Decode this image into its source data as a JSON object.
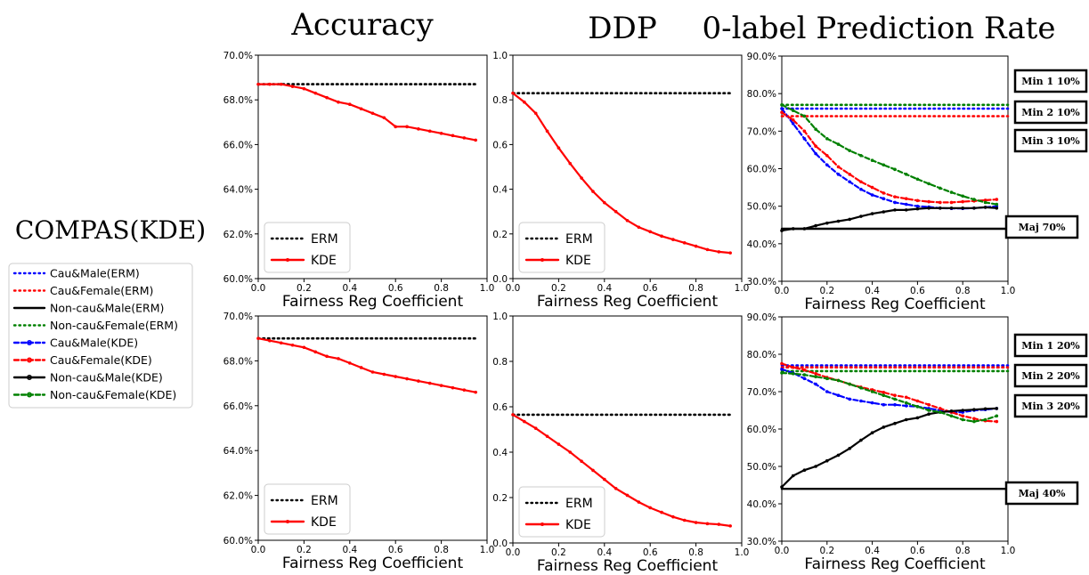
{
  "headers": {
    "accuracy": "Accuracy",
    "ddp": "DDP",
    "rate": "0-label Prediction Rate"
  },
  "row_label": "COMPAS(KDE)",
  "group_legend": [
    {
      "label": "Cau&Male(ERM)",
      "color": "#0000ff",
      "style": "dotted"
    },
    {
      "label": "Cau&Female(ERM)",
      "color": "#ff0000",
      "style": "dotted"
    },
    {
      "label": "Non-cau&Male(ERM)",
      "color": "#000000",
      "style": "solid"
    },
    {
      "label": "Non-cau&Female(ERM)",
      "color": "#008000",
      "style": "dotted"
    },
    {
      "label": "Cau&Male(KDE)",
      "color": "#0000ff",
      "style": "dash-marker"
    },
    {
      "label": "Cau&Female(KDE)",
      "color": "#ff0000",
      "style": "dash-marker"
    },
    {
      "label": "Non-cau&Male(KDE)",
      "color": "#000000",
      "style": "solid-marker"
    },
    {
      "label": "Non-cau&Female(KDE)",
      "color": "#008000",
      "style": "dash-marker"
    }
  ],
  "colors": {
    "blue": "#0000ff",
    "red": "#ff0000",
    "black": "#000000",
    "green": "#008000"
  },
  "chart_data": [
    {
      "id": "acc-top",
      "type": "line",
      "xlabel": "Fairness Reg Coefficient",
      "xlim": [
        0,
        1
      ],
      "ylim": [
        0.6,
        0.7
      ],
      "xticks": [
        0,
        0.2,
        0.4,
        0.6,
        0.8,
        1.0
      ],
      "xticklabels": [
        "0.0",
        "0.2",
        "0.4",
        "0.6",
        "0.8",
        "1.0"
      ],
      "yticks": [
        0.6,
        0.62,
        0.64,
        0.66,
        0.68,
        0.7
      ],
      "yticklabels": [
        "60.0%",
        "62.0%",
        "64.0%",
        "66.0%",
        "68.0%",
        "70.0%"
      ],
      "legend": {
        "position": "lower-left",
        "entries": [
          "ERM",
          "KDE"
        ]
      },
      "series": [
        {
          "name": "ERM",
          "color": "#000000",
          "style": "dotted",
          "x": [
            0,
            0.95
          ],
          "y": [
            0.687,
            0.687
          ]
        },
        {
          "name": "KDE",
          "color": "#ff0000",
          "style": "solid-marker",
          "x": [
            0,
            0.05,
            0.1,
            0.15,
            0.2,
            0.25,
            0.3,
            0.35,
            0.4,
            0.45,
            0.5,
            0.55,
            0.6,
            0.65,
            0.7,
            0.75,
            0.8,
            0.85,
            0.9,
            0.95
          ],
          "y": [
            0.687,
            0.687,
            0.687,
            0.686,
            0.685,
            0.683,
            0.681,
            0.679,
            0.678,
            0.676,
            0.674,
            0.672,
            0.668,
            0.668,
            0.667,
            0.666,
            0.665,
            0.664,
            0.663,
            0.662
          ]
        }
      ]
    },
    {
      "id": "ddp-top",
      "type": "line",
      "xlabel": "Fairness Reg Coefficient",
      "xlim": [
        0,
        1
      ],
      "ylim": [
        0,
        1
      ],
      "xticks": [
        0,
        0.2,
        0.4,
        0.6,
        0.8,
        1.0
      ],
      "xticklabels": [
        "0.0",
        "0.2",
        "0.4",
        "0.6",
        "0.8",
        "1.0"
      ],
      "yticks": [
        0,
        0.2,
        0.4,
        0.6,
        0.8,
        1.0
      ],
      "yticklabels": [
        "0.0",
        "0.2",
        "0.4",
        "0.6",
        "0.8",
        "1.0"
      ],
      "legend": {
        "position": "lower-left",
        "entries": [
          "ERM",
          "KDE"
        ]
      },
      "series": [
        {
          "name": "ERM",
          "color": "#000000",
          "style": "dotted",
          "x": [
            0,
            0.95
          ],
          "y": [
            0.83,
            0.83
          ]
        },
        {
          "name": "KDE",
          "color": "#ff0000",
          "style": "solid-marker",
          "x": [
            0,
            0.05,
            0.1,
            0.15,
            0.2,
            0.25,
            0.3,
            0.35,
            0.4,
            0.45,
            0.5,
            0.55,
            0.6,
            0.65,
            0.7,
            0.75,
            0.8,
            0.85,
            0.9,
            0.95
          ],
          "y": [
            0.83,
            0.79,
            0.74,
            0.66,
            0.585,
            0.515,
            0.45,
            0.39,
            0.34,
            0.3,
            0.26,
            0.23,
            0.21,
            0.19,
            0.175,
            0.16,
            0.145,
            0.13,
            0.12,
            0.115
          ]
        }
      ]
    },
    {
      "id": "rate-top",
      "type": "line",
      "xlabel": "Fairness Reg Coefficient",
      "xlim": [
        0,
        1
      ],
      "ylim": [
        0.3,
        0.9
      ],
      "xticks": [
        0,
        0.2,
        0.4,
        0.6,
        0.8,
        1.0
      ],
      "xticklabels": [
        "0.0",
        "0.2",
        "0.4",
        "0.6",
        "0.8",
        "1.0"
      ],
      "yticks": [
        0.3,
        0.4,
        0.5,
        0.6,
        0.7,
        0.8,
        0.9
      ],
      "yticklabels": [
        "30.0%",
        "40.0%",
        "50.0%",
        "60.0%",
        "70.0%",
        "80.0%",
        "90.0%"
      ],
      "annotations": [
        "Min 1 10%",
        "Min 2 10%",
        "Min 3 10%",
        "Maj 70%"
      ],
      "series": [
        {
          "name": "Cau&Male(ERM)",
          "color": "#0000ff",
          "style": "dotted",
          "x": [
            0,
            1
          ],
          "y": [
            0.76,
            0.76
          ]
        },
        {
          "name": "Cau&Female(ERM)",
          "color": "#ff0000",
          "style": "dotted",
          "x": [
            0,
            1
          ],
          "y": [
            0.74,
            0.74
          ]
        },
        {
          "name": "Non-cau&Male(ERM)",
          "color": "#000000",
          "style": "solid",
          "x": [
            0,
            1
          ],
          "y": [
            0.44,
            0.44
          ]
        },
        {
          "name": "Non-cau&Female(ERM)",
          "color": "#008000",
          "style": "dotted",
          "x": [
            0,
            1
          ],
          "y": [
            0.77,
            0.77
          ]
        },
        {
          "name": "Cau&Male(KDE)",
          "color": "#0000ff",
          "style": "dash-marker",
          "x": [
            0,
            0.05,
            0.1,
            0.15,
            0.2,
            0.25,
            0.3,
            0.35,
            0.4,
            0.45,
            0.5,
            0.55,
            0.6,
            0.65,
            0.7,
            0.75,
            0.8,
            0.85,
            0.9,
            0.95
          ],
          "y": [
            0.76,
            0.72,
            0.68,
            0.64,
            0.61,
            0.585,
            0.565,
            0.545,
            0.53,
            0.52,
            0.51,
            0.505,
            0.5,
            0.498,
            0.495,
            0.494,
            0.494,
            0.495,
            0.497,
            0.5
          ]
        },
        {
          "name": "Cau&Female(KDE)",
          "color": "#ff0000",
          "style": "dash-marker",
          "x": [
            0,
            0.05,
            0.1,
            0.15,
            0.2,
            0.25,
            0.3,
            0.35,
            0.4,
            0.45,
            0.5,
            0.55,
            0.6,
            0.65,
            0.7,
            0.75,
            0.8,
            0.85,
            0.9,
            0.95
          ],
          "y": [
            0.75,
            0.73,
            0.7,
            0.66,
            0.635,
            0.605,
            0.585,
            0.565,
            0.55,
            0.535,
            0.525,
            0.52,
            0.515,
            0.512,
            0.51,
            0.51,
            0.512,
            0.514,
            0.516,
            0.518
          ]
        },
        {
          "name": "Non-cau&Male(KDE)",
          "color": "#000000",
          "style": "solid-marker",
          "x": [
            0,
            0.05,
            0.1,
            0.15,
            0.2,
            0.25,
            0.3,
            0.35,
            0.4,
            0.45,
            0.5,
            0.55,
            0.6,
            0.65,
            0.7,
            0.75,
            0.8,
            0.85,
            0.9,
            0.95
          ],
          "y": [
            0.435,
            0.44,
            0.44,
            0.448,
            0.455,
            0.46,
            0.465,
            0.473,
            0.48,
            0.485,
            0.49,
            0.49,
            0.493,
            0.495,
            0.495,
            0.495,
            0.495,
            0.495,
            0.497,
            0.495
          ]
        },
        {
          "name": "Non-cau&Female(KDE)",
          "color": "#008000",
          "style": "dash-marker",
          "x": [
            0,
            0.05,
            0.1,
            0.15,
            0.2,
            0.25,
            0.3,
            0.35,
            0.4,
            0.45,
            0.5,
            0.55,
            0.6,
            0.65,
            0.7,
            0.75,
            0.8,
            0.85,
            0.9,
            0.95
          ],
          "y": [
            0.77,
            0.755,
            0.74,
            0.705,
            0.68,
            0.665,
            0.648,
            0.635,
            0.622,
            0.61,
            0.598,
            0.585,
            0.572,
            0.56,
            0.548,
            0.537,
            0.527,
            0.518,
            0.51,
            0.505
          ]
        }
      ]
    },
    {
      "id": "acc-bottom",
      "type": "line",
      "xlabel": "Fairness Reg Coefficient",
      "xlim": [
        0,
        1
      ],
      "ylim": [
        0.6,
        0.7
      ],
      "xticks": [
        0,
        0.2,
        0.4,
        0.6,
        0.8,
        1.0
      ],
      "xticklabels": [
        "0.0",
        "0.2",
        "0.4",
        "0.6",
        "0.8",
        "1.0"
      ],
      "yticks": [
        0.6,
        0.62,
        0.64,
        0.66,
        0.68,
        0.7
      ],
      "yticklabels": [
        "60.0%",
        "62.0%",
        "64.0%",
        "66.0%",
        "68.0%",
        "70.0%"
      ],
      "legend": {
        "position": "lower-left",
        "entries": [
          "ERM",
          "KDE"
        ]
      },
      "series": [
        {
          "name": "ERM",
          "color": "#000000",
          "style": "dotted",
          "x": [
            0,
            0.95
          ],
          "y": [
            0.69,
            0.69
          ]
        },
        {
          "name": "KDE",
          "color": "#ff0000",
          "style": "solid-marker",
          "x": [
            0,
            0.05,
            0.1,
            0.15,
            0.2,
            0.25,
            0.3,
            0.35,
            0.4,
            0.45,
            0.5,
            0.55,
            0.6,
            0.65,
            0.7,
            0.75,
            0.8,
            0.85,
            0.9,
            0.95
          ],
          "y": [
            0.69,
            0.689,
            0.688,
            0.687,
            0.686,
            0.684,
            0.682,
            0.681,
            0.679,
            0.677,
            0.675,
            0.674,
            0.673,
            0.672,
            0.671,
            0.67,
            0.669,
            0.668,
            0.667,
            0.666
          ]
        }
      ]
    },
    {
      "id": "ddp-bottom",
      "type": "line",
      "xlabel": "Fairness Reg Coefficient",
      "xlim": [
        0,
        1
      ],
      "ylim": [
        0,
        1
      ],
      "xticks": [
        0,
        0.2,
        0.4,
        0.6,
        0.8,
        1.0
      ],
      "xticklabels": [
        "0.0",
        "0.2",
        "0.4",
        "0.6",
        "0.8",
        "1.0"
      ],
      "yticks": [
        0,
        0.2,
        0.4,
        0.6,
        0.8,
        1.0
      ],
      "yticklabels": [
        "0.0",
        "0.2",
        "0.4",
        "0.6",
        "0.8",
        "1.0"
      ],
      "legend": {
        "position": "lower-left",
        "entries": [
          "ERM",
          "KDE"
        ]
      },
      "series": [
        {
          "name": "ERM",
          "color": "#000000",
          "style": "dotted",
          "x": [
            0,
            0.95
          ],
          "y": [
            0.565,
            0.565
          ]
        },
        {
          "name": "KDE",
          "color": "#ff0000",
          "style": "solid-marker",
          "x": [
            0,
            0.05,
            0.1,
            0.15,
            0.2,
            0.25,
            0.3,
            0.35,
            0.4,
            0.45,
            0.5,
            0.55,
            0.6,
            0.65,
            0.7,
            0.75,
            0.8,
            0.85,
            0.9,
            0.95
          ],
          "y": [
            0.565,
            0.535,
            0.505,
            0.47,
            0.435,
            0.4,
            0.36,
            0.32,
            0.28,
            0.24,
            0.21,
            0.18,
            0.155,
            0.135,
            0.115,
            0.1,
            0.09,
            0.085,
            0.082,
            0.075
          ]
        }
      ]
    },
    {
      "id": "rate-bottom",
      "type": "line",
      "xlabel": "Fairness Reg Coefficient",
      "xlim": [
        0,
        1
      ],
      "ylim": [
        0.3,
        0.9
      ],
      "xticks": [
        0,
        0.2,
        0.4,
        0.6,
        0.8,
        1.0
      ],
      "xticklabels": [
        "0.0",
        "0.2",
        "0.4",
        "0.6",
        "0.8",
        "1.0"
      ],
      "yticks": [
        0.3,
        0.4,
        0.5,
        0.6,
        0.7,
        0.8,
        0.9
      ],
      "yticklabels": [
        "30.0%",
        "40.0%",
        "50.0%",
        "60.0%",
        "70.0%",
        "80.0%",
        "90.0%"
      ],
      "annotations": [
        "Min 1 20%",
        "Min 2 20%",
        "Min 3 20%",
        "Maj 40%"
      ],
      "series": [
        {
          "name": "Cau&Male(ERM)",
          "color": "#0000ff",
          "style": "dotted",
          "x": [
            0,
            1
          ],
          "y": [
            0.77,
            0.77
          ]
        },
        {
          "name": "Cau&Female(ERM)",
          "color": "#ff0000",
          "style": "dotted",
          "x": [
            0,
            1
          ],
          "y": [
            0.765,
            0.765
          ]
        },
        {
          "name": "Non-cau&Male(ERM)",
          "color": "#000000",
          "style": "solid",
          "x": [
            0,
            1
          ],
          "y": [
            0.44,
            0.44
          ]
        },
        {
          "name": "Non-cau&Female(ERM)",
          "color": "#008000",
          "style": "dotted",
          "x": [
            0,
            1
          ],
          "y": [
            0.755,
            0.755
          ]
        },
        {
          "name": "Cau&Male(KDE)",
          "color": "#0000ff",
          "style": "dash-marker",
          "x": [
            0,
            0.05,
            0.1,
            0.15,
            0.2,
            0.25,
            0.3,
            0.35,
            0.4,
            0.45,
            0.5,
            0.55,
            0.6,
            0.65,
            0.7,
            0.75,
            0.8,
            0.85,
            0.9,
            0.95
          ],
          "y": [
            0.76,
            0.75,
            0.735,
            0.72,
            0.7,
            0.69,
            0.68,
            0.675,
            0.67,
            0.665,
            0.665,
            0.662,
            0.66,
            0.655,
            0.65,
            0.645,
            0.645,
            0.65,
            0.652,
            0.655
          ]
        },
        {
          "name": "Cau&Female(KDE)",
          "color": "#ff0000",
          "style": "dash-marker",
          "x": [
            0,
            0.05,
            0.1,
            0.15,
            0.2,
            0.25,
            0.3,
            0.35,
            0.4,
            0.45,
            0.5,
            0.55,
            0.6,
            0.65,
            0.7,
            0.75,
            0.8,
            0.85,
            0.9,
            0.95
          ],
          "y": [
            0.775,
            0.765,
            0.758,
            0.748,
            0.738,
            0.73,
            0.72,
            0.712,
            0.705,
            0.698,
            0.69,
            0.685,
            0.675,
            0.665,
            0.655,
            0.645,
            0.635,
            0.628,
            0.622,
            0.62
          ]
        },
        {
          "name": "Non-cau&Male(KDE)",
          "color": "#000000",
          "style": "solid-marker",
          "x": [
            0,
            0.05,
            0.1,
            0.15,
            0.2,
            0.25,
            0.3,
            0.35,
            0.4,
            0.45,
            0.5,
            0.55,
            0.6,
            0.65,
            0.7,
            0.75,
            0.8,
            0.85,
            0.9,
            0.95
          ],
          "y": [
            0.445,
            0.475,
            0.49,
            0.5,
            0.515,
            0.53,
            0.548,
            0.57,
            0.59,
            0.605,
            0.615,
            0.625,
            0.63,
            0.64,
            0.645,
            0.648,
            0.65,
            0.652,
            0.654,
            0.655
          ]
        },
        {
          "name": "Non-cau&Female(KDE)",
          "color": "#008000",
          "style": "dash-marker",
          "x": [
            0,
            0.05,
            0.1,
            0.15,
            0.2,
            0.25,
            0.3,
            0.35,
            0.4,
            0.45,
            0.5,
            0.55,
            0.6,
            0.65,
            0.7,
            0.75,
            0.8,
            0.85,
            0.9,
            0.95
          ],
          "y": [
            0.75,
            0.748,
            0.745,
            0.74,
            0.735,
            0.73,
            0.72,
            0.71,
            0.7,
            0.69,
            0.68,
            0.67,
            0.66,
            0.65,
            0.645,
            0.635,
            0.625,
            0.62,
            0.625,
            0.635
          ]
        }
      ]
    }
  ]
}
